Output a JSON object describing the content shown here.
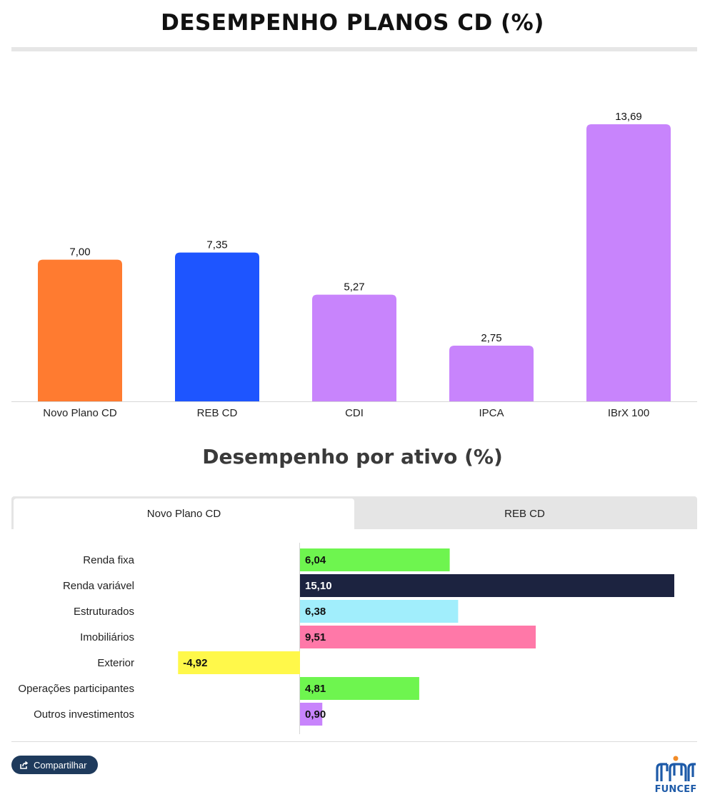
{
  "header": {
    "title": "DESEMPENHO PLANOS CD (%)"
  },
  "chart_data": [
    {
      "type": "bar",
      "title": "DESEMPENHO PLANOS CD (%)",
      "categories": [
        "Novo Plano CD",
        "REB CD",
        "CDI",
        "IPCA",
        "IBrX 100"
      ],
      "values": [
        7.0,
        7.35,
        5.27,
        2.75,
        13.69
      ],
      "value_labels": [
        "7,00",
        "7,35",
        "5,27",
        "2,75",
        "13,69"
      ],
      "colors": [
        "#FF7B30",
        "#1E55FF",
        "#C884FC",
        "#C884FC",
        "#C884FC"
      ],
      "ylim": [
        0,
        13.69
      ],
      "grid": false
    },
    {
      "type": "bar",
      "orientation": "horizontal",
      "title": "Desempenho por ativo (%)",
      "categories": [
        "Renda fixa",
        "Renda variável",
        "Estruturados",
        "Imobiliários",
        "Exterior",
        "Operações participantes",
        "Outros investimentos"
      ],
      "values": [
        6.04,
        15.1,
        6.38,
        9.51,
        -4.92,
        4.81,
        0.9
      ],
      "value_labels": [
        "6,04",
        "15,10",
        "6,38",
        "9,51",
        "-4,92",
        "4,81",
        "0,90"
      ],
      "colors": [
        "#6EF54F",
        "#1C2340",
        "#A1EEFC",
        "#FF78A8",
        "#FFF84A",
        "#6EF54F",
        "#C884FC"
      ],
      "label_colors": [
        "#111111",
        "#FFFFFF",
        "#111111",
        "#111111",
        "#111111",
        "#111111",
        "#111111"
      ],
      "xlim": [
        -4.92,
        15.1
      ],
      "grid": false
    }
  ],
  "section2": {
    "title": "Desempenho por ativo (%)"
  },
  "tabs": [
    {
      "label": "Novo Plano CD",
      "active": true
    },
    {
      "label": "REB CD",
      "active": false
    }
  ],
  "footer": {
    "share_label": "Compartilhar",
    "share_icon": "share-icon",
    "logo_text": "FUNCEF",
    "logo_colors": {
      "figures": "#1D5AA8",
      "head": "#F28C28"
    }
  }
}
